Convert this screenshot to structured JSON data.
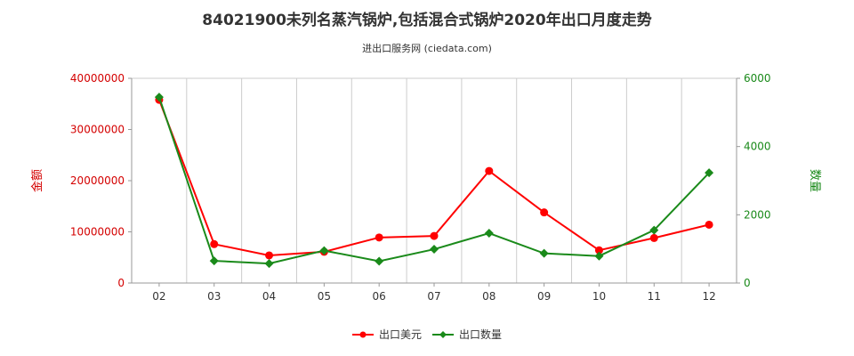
{
  "chart_data": {
    "type": "line",
    "title": "84021900未列名蒸汽锅炉,包括混合式锅炉2020年出口月度走势",
    "subtitle": "进出口服务网 (ciedata.com)",
    "categories": [
      "02",
      "03",
      "04",
      "05",
      "06",
      "07",
      "08",
      "09",
      "10",
      "11",
      "12"
    ],
    "series": [
      {
        "name": "出口美元",
        "axis": "left",
        "color": "#ff0000",
        "marker": "circle",
        "values": [
          35800000,
          7600000,
          5400000,
          6100000,
          8900000,
          9200000,
          21900000,
          13800000,
          6400000,
          8800000,
          11400000
        ]
      },
      {
        "name": "出口数量",
        "axis": "right",
        "color": "#1a8a1a",
        "marker": "diamond",
        "values": [
          5450,
          650,
          570,
          950,
          640,
          990,
          1460,
          870,
          790,
          1550,
          3230
        ]
      }
    ],
    "y_left": {
      "label": "金额",
      "ylim": [
        0,
        40000000
      ],
      "ticks": [
        "0",
        "10000000",
        "20000000",
        "30000000",
        "40000000"
      ],
      "tick_values": [
        0,
        10000000,
        20000000,
        30000000,
        40000000
      ],
      "color": "#d40000"
    },
    "y_right": {
      "label": "数量",
      "ylim": [
        0,
        6000
      ],
      "ticks": [
        "0",
        "2000",
        "4000",
        "6000"
      ],
      "tick_values": [
        0,
        2000,
        4000,
        6000
      ],
      "color": "#1a8a1a"
    },
    "grid": "vertical",
    "legend_position": "bottom-center"
  }
}
